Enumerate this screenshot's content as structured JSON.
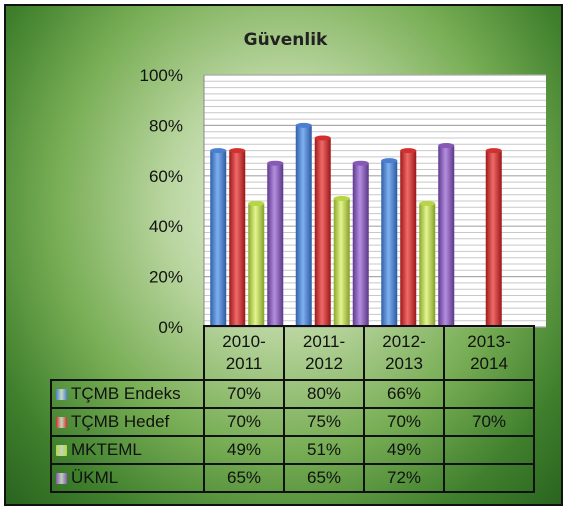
{
  "chart_data": {
    "type": "bar",
    "title": "Güvenlik",
    "categories": [
      [
        "2010-",
        "2011"
      ],
      [
        "2011-",
        "2012"
      ],
      [
        "2012-",
        "2013"
      ],
      [
        "2013-",
        "2014"
      ]
    ],
    "y_ticks": [
      "0%",
      "20%",
      "40%",
      "60%",
      "80%",
      "100%"
    ],
    "ylim": [
      0,
      100
    ],
    "grid": true,
    "legend": "table below plot",
    "series": [
      {
        "name": "TÇMB Endeks",
        "color": "#4a7fd0",
        "values": [
          70,
          80,
          66,
          null
        ],
        "labels": [
          "70%",
          "80%",
          "66%",
          ""
        ]
      },
      {
        "name": "TÇMB Hedef",
        "color": "#d22f2f",
        "values": [
          70,
          75,
          70,
          70
        ],
        "labels": [
          "70%",
          "75%",
          "70%",
          "70%"
        ]
      },
      {
        "name": "MKTEML",
        "color": "#b6d642",
        "values": [
          49,
          51,
          49,
          null
        ],
        "labels": [
          "49%",
          "51%",
          "49%",
          ""
        ]
      },
      {
        "name": "ÜKML",
        "color": "#8759b5",
        "values": [
          65,
          65,
          72,
          null
        ],
        "labels": [
          "65%",
          "65%",
          "72%",
          ""
        ]
      }
    ]
  }
}
